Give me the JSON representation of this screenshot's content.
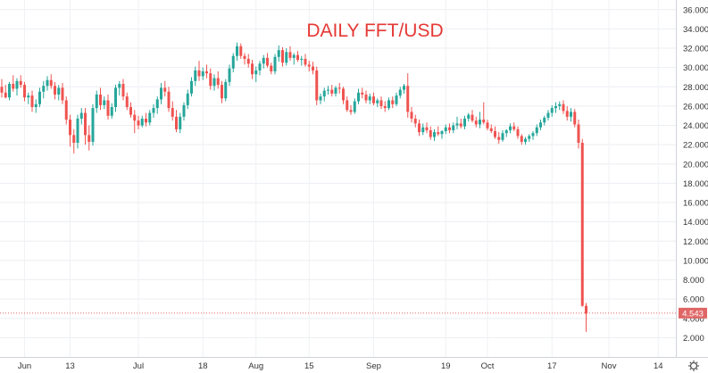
{
  "chart_data": {
    "type": "candlestick",
    "title": "DAILY FFT/USD",
    "ylim": [
      0,
      37
    ],
    "y_ticks": [
      "36.000",
      "34.000",
      "32.000",
      "30.000",
      "28.000",
      "26.000",
      "24.000",
      "22.000",
      "20.000",
      "18.000",
      "16.000",
      "14.000",
      "12.000",
      "10.000",
      "8.000",
      "6.000",
      "4.000",
      "2.000"
    ],
    "y_tick_values": [
      36,
      34,
      32,
      30,
      28,
      26,
      24,
      22,
      20,
      18,
      16,
      14,
      12,
      10,
      8,
      6,
      4,
      2
    ],
    "x_ticks": [
      {
        "label": "Jun",
        "index": 6
      },
      {
        "label": "13",
        "index": 18
      },
      {
        "label": "Jul",
        "index": 36
      },
      {
        "label": "18",
        "index": 53
      },
      {
        "label": "Aug",
        "index": 67
      },
      {
        "label": "15",
        "index": 81
      },
      {
        "label": "Sep",
        "index": 98
      },
      {
        "label": "19",
        "index": 117
      },
      {
        "label": "Oct",
        "index": 128
      },
      {
        "label": "17",
        "index": 145
      },
      {
        "label": "Nov",
        "index": 160
      },
      {
        "label": "14",
        "index": 173
      }
    ],
    "last_price": "4.543",
    "last_price_value": 4.543,
    "candles": [
      [
        28.0,
        28.8,
        26.9,
        27.4
      ],
      [
        27.4,
        28.2,
        26.8,
        26.9
      ],
      [
        26.9,
        28.5,
        26.6,
        28.3
      ],
      [
        28.3,
        29.2,
        27.5,
        27.8
      ],
      [
        27.8,
        28.9,
        27.1,
        28.6
      ],
      [
        28.6,
        29.2,
        27.9,
        28.2
      ],
      [
        28.2,
        28.5,
        26.5,
        26.9
      ],
      [
        26.9,
        27.4,
        26.2,
        27.1
      ],
      [
        27.1,
        27.6,
        25.4,
        25.9
      ],
      [
        25.9,
        26.7,
        25.3,
        26.2
      ],
      [
        26.2,
        27.9,
        25.9,
        27.5
      ],
      [
        27.5,
        28.6,
        26.8,
        28.1
      ],
      [
        28.1,
        29.1,
        27.6,
        28.7
      ],
      [
        28.7,
        29.3,
        27.8,
        28.1
      ],
      [
        28.1,
        28.5,
        26.7,
        27.2
      ],
      [
        27.2,
        28.2,
        26.6,
        27.9
      ],
      [
        27.9,
        28.4,
        26.2,
        26.6
      ],
      [
        26.6,
        27.0,
        24.1,
        24.6
      ],
      [
        24.6,
        25.1,
        21.8,
        23.0
      ],
      [
        23.0,
        23.6,
        21.1,
        22.2
      ],
      [
        22.2,
        25.1,
        21.6,
        24.7
      ],
      [
        24.7,
        25.8,
        24.1,
        25.3
      ],
      [
        25.3,
        25.8,
        22.0,
        23.0
      ],
      [
        23.0,
        24.0,
        21.4,
        22.3
      ],
      [
        22.3,
        26.2,
        21.9,
        25.8
      ],
      [
        25.8,
        27.6,
        25.3,
        27.2
      ],
      [
        27.2,
        27.9,
        25.6,
        26.1
      ],
      [
        26.1,
        27.0,
        25.7,
        26.6
      ],
      [
        26.6,
        27.2,
        24.6,
        25.0
      ],
      [
        25.0,
        26.3,
        24.7,
        25.9
      ],
      [
        25.9,
        28.2,
        25.4,
        27.9
      ],
      [
        27.9,
        28.6,
        27.1,
        28.3
      ],
      [
        28.3,
        28.8,
        26.6,
        27.0
      ],
      [
        27.0,
        27.4,
        25.6,
        25.9
      ],
      [
        25.9,
        26.4,
        24.8,
        25.1
      ],
      [
        25.1,
        25.6,
        23.2,
        24.5
      ],
      [
        24.5,
        25.0,
        23.6,
        24.0
      ],
      [
        24.0,
        25.0,
        23.8,
        24.7
      ],
      [
        24.7,
        25.3,
        23.9,
        24.3
      ],
      [
        24.3,
        25.6,
        24.0,
        25.3
      ],
      [
        25.3,
        26.2,
        24.8,
        25.8
      ],
      [
        25.8,
        27.0,
        25.2,
        26.7
      ],
      [
        26.7,
        28.4,
        26.2,
        27.9
      ],
      [
        27.9,
        28.6,
        27.0,
        27.5
      ],
      [
        27.5,
        28.0,
        25.4,
        25.8
      ],
      [
        25.8,
        26.5,
        24.5,
        24.9
      ],
      [
        24.9,
        25.6,
        23.3,
        23.6
      ],
      [
        23.6,
        25.3,
        23.2,
        24.9
      ],
      [
        24.9,
        26.4,
        24.5,
        26.1
      ],
      [
        26.1,
        27.7,
        25.7,
        27.3
      ],
      [
        27.3,
        29.0,
        27.0,
        28.6
      ],
      [
        28.6,
        30.1,
        28.1,
        29.7
      ],
      [
        29.7,
        30.7,
        28.6,
        29.1
      ],
      [
        29.1,
        30.0,
        28.7,
        29.6
      ],
      [
        29.6,
        30.3,
        28.9,
        29.4
      ],
      [
        29.4,
        29.9,
        27.7,
        28.1
      ],
      [
        28.1,
        29.3,
        27.6,
        28.9
      ],
      [
        28.9,
        29.6,
        27.8,
        28.2
      ],
      [
        28.2,
        28.6,
        26.3,
        26.8
      ],
      [
        26.8,
        28.8,
        26.5,
        28.5
      ],
      [
        28.5,
        30.3,
        28.1,
        29.9
      ],
      [
        29.9,
        31.5,
        29.5,
        31.2
      ],
      [
        31.2,
        32.6,
        30.7,
        32.2
      ],
      [
        32.2,
        32.5,
        30.9,
        31.2
      ],
      [
        31.2,
        31.5,
        30.3,
        30.9
      ],
      [
        30.9,
        31.4,
        30.0,
        30.4
      ],
      [
        30.4,
        30.8,
        28.8,
        29.3
      ],
      [
        29.3,
        30.1,
        28.5,
        29.7
      ],
      [
        29.7,
        30.7,
        29.2,
        30.4
      ],
      [
        30.4,
        31.3,
        29.9,
        31.0
      ],
      [
        31.0,
        31.5,
        30.0,
        30.2
      ],
      [
        30.2,
        30.5,
        29.3,
        29.6
      ],
      [
        29.6,
        31.4,
        29.3,
        31.1
      ],
      [
        31.1,
        32.3,
        30.6,
        31.8
      ],
      [
        31.8,
        32.1,
        30.1,
        30.5
      ],
      [
        30.5,
        32.0,
        30.2,
        31.6
      ],
      [
        31.6,
        32.2,
        30.7,
        31.0
      ],
      [
        31.0,
        31.5,
        30.3,
        31.3
      ],
      [
        31.3,
        31.7,
        30.6,
        30.8
      ],
      [
        30.8,
        31.2,
        30.2,
        30.9
      ],
      [
        30.9,
        31.4,
        30.1,
        30.3
      ],
      [
        30.3,
        30.7,
        29.6,
        30.1
      ],
      [
        30.1,
        30.6,
        29.3,
        29.7
      ],
      [
        29.7,
        30.1,
        26.1,
        26.6
      ],
      [
        26.6,
        27.3,
        26.2,
        27.0
      ],
      [
        27.0,
        27.9,
        26.5,
        27.6
      ],
      [
        27.6,
        28.1,
        27.2,
        27.7
      ],
      [
        27.7,
        28.2,
        27.0,
        27.3
      ],
      [
        27.3,
        28.1,
        27.0,
        27.9
      ],
      [
        27.9,
        28.4,
        27.3,
        27.8
      ],
      [
        27.8,
        28.0,
        26.2,
        26.6
      ],
      [
        26.6,
        27.0,
        25.4,
        25.6
      ],
      [
        25.6,
        26.1,
        25.1,
        25.4
      ],
      [
        25.4,
        26.8,
        25.2,
        26.5
      ],
      [
        26.5,
        27.8,
        26.2,
        27.4
      ],
      [
        27.4,
        27.9,
        26.8,
        27.2
      ],
      [
        27.2,
        27.6,
        26.3,
        26.6
      ],
      [
        26.6,
        27.3,
        26.2,
        27.0
      ],
      [
        27.0,
        27.4,
        26.1,
        26.3
      ],
      [
        26.3,
        26.8,
        25.9,
        26.6
      ],
      [
        26.6,
        27.0,
        25.7,
        26.0
      ],
      [
        26.0,
        26.5,
        25.4,
        25.8
      ],
      [
        25.8,
        26.9,
        25.6,
        26.6
      ],
      [
        26.6,
        27.0,
        25.8,
        26.2
      ],
      [
        26.2,
        27.4,
        26.0,
        27.1
      ],
      [
        27.1,
        28.0,
        26.8,
        27.7
      ],
      [
        27.7,
        28.3,
        27.3,
        28.1
      ],
      [
        28.1,
        29.4,
        24.8,
        25.4
      ],
      [
        25.4,
        25.9,
        24.3,
        24.7
      ],
      [
        24.7,
        25.1,
        23.8,
        24.2
      ],
      [
        24.2,
        24.6,
        22.9,
        23.3
      ],
      [
        23.3,
        24.2,
        23.0,
        23.8
      ],
      [
        23.8,
        24.3,
        23.2,
        23.5
      ],
      [
        23.5,
        23.9,
        22.5,
        22.8
      ],
      [
        22.8,
        23.6,
        22.4,
        23.3
      ],
      [
        23.3,
        23.9,
        22.9,
        23.1
      ],
      [
        23.1,
        23.5,
        22.6,
        23.4
      ],
      [
        23.4,
        24.1,
        23.1,
        23.8
      ],
      [
        23.8,
        24.2,
        23.2,
        23.5
      ],
      [
        23.5,
        24.3,
        23.2,
        24.0
      ],
      [
        24.0,
        24.9,
        23.6,
        24.2
      ],
      [
        24.2,
        24.7,
        23.7,
        23.9
      ],
      [
        23.9,
        25.0,
        23.6,
        24.7
      ],
      [
        24.7,
        25.3,
        24.4,
        25.1
      ],
      [
        25.1,
        25.6,
        24.3,
        24.5
      ],
      [
        24.5,
        24.9,
        23.8,
        24.1
      ],
      [
        24.1,
        25.4,
        23.7,
        24.6
      ],
      [
        24.6,
        26.4,
        24.1,
        24.3
      ],
      [
        24.3,
        24.6,
        23.5,
        23.7
      ],
      [
        23.7,
        24.1,
        23.2,
        23.4
      ],
      [
        23.4,
        23.9,
        22.6,
        22.8
      ],
      [
        22.8,
        23.3,
        22.1,
        22.5
      ],
      [
        22.5,
        23.5,
        22.3,
        23.2
      ],
      [
        23.2,
        23.6,
        22.8,
        23.5
      ],
      [
        23.5,
        24.2,
        23.2,
        23.9
      ],
      [
        23.9,
        24.3,
        23.4,
        23.6
      ],
      [
        23.6,
        23.9,
        22.6,
        22.9
      ],
      [
        22.9,
        23.1,
        22.0,
        22.3
      ],
      [
        22.3,
        22.8,
        22.0,
        22.6
      ],
      [
        22.6,
        23.1,
        22.3,
        22.9
      ],
      [
        22.9,
        23.4,
        22.5,
        23.2
      ],
      [
        23.2,
        24.1,
        22.9,
        23.8
      ],
      [
        23.8,
        24.6,
        23.5,
        24.3
      ],
      [
        24.3,
        25.0,
        24.0,
        24.8
      ],
      [
        24.8,
        25.6,
        24.5,
        25.3
      ],
      [
        25.3,
        26.1,
        24.9,
        25.8
      ],
      [
        25.8,
        26.4,
        25.3,
        26.0
      ],
      [
        26.0,
        26.5,
        25.6,
        26.2
      ],
      [
        26.2,
        26.6,
        25.2,
        25.5
      ],
      [
        25.5,
        26.0,
        24.5,
        24.9
      ],
      [
        24.9,
        25.8,
        24.4,
        25.4
      ],
      [
        25.4,
        25.7,
        23.8,
        24.1
      ],
      [
        24.1,
        24.6,
        21.6,
        22.2
      ],
      [
        22.2,
        22.6,
        5.2,
        5.3
      ],
      [
        5.3,
        5.6,
        2.6,
        4.5
      ]
    ]
  }
}
